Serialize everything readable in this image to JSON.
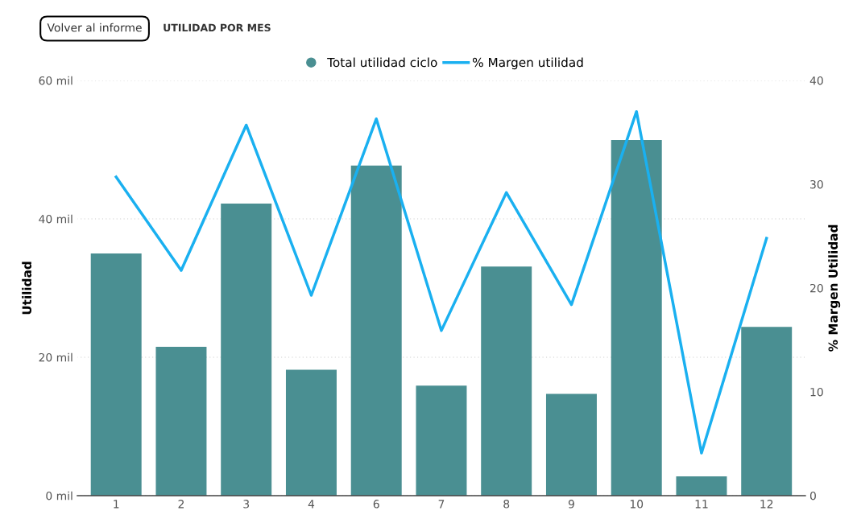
{
  "chart_data": {
    "type": "bar",
    "title": "UTILIDAD POR MES",
    "annotations": [
      "Volver al informe"
    ],
    "categories": [
      "1",
      "2",
      "3",
      "4",
      "6",
      "7",
      "8",
      "9",
      "10",
      "11",
      "12"
    ],
    "ylabel": "Utilidad",
    "y2label": "% Margen Utilidad",
    "series": [
      {
        "name": "Total utilidad ciclo",
        "color": "#4a8f92",
        "values": [
          35.0,
          21.5,
          42.2,
          18.2,
          47.7,
          15.9,
          33.1,
          14.7,
          51.4,
          2.8,
          24.4
        ]
      },
      {
        "name": "% Margen utilidad",
        "type": "line",
        "axis": "y2",
        "color": "#1ab0f0",
        "values": [
          30.7,
          21.7,
          35.7,
          19.3,
          36.3,
          15.9,
          29.2,
          18.4,
          37.0,
          4.1,
          24.8
        ]
      }
    ],
    "ylim": [
      0,
      60
    ],
    "yticks": [
      {
        "value": 0,
        "label": "0 mil"
      },
      {
        "value": 20,
        "label": "20 mil"
      },
      {
        "value": 40,
        "label": "40 mil"
      },
      {
        "value": 60,
        "label": "60 mil"
      }
    ],
    "y2lim": [
      0,
      40
    ],
    "y2ticks": [
      0,
      10,
      20,
      30,
      40
    ],
    "grid": "y",
    "legend": "top",
    "marker": "none",
    "line_style": "solid"
  }
}
